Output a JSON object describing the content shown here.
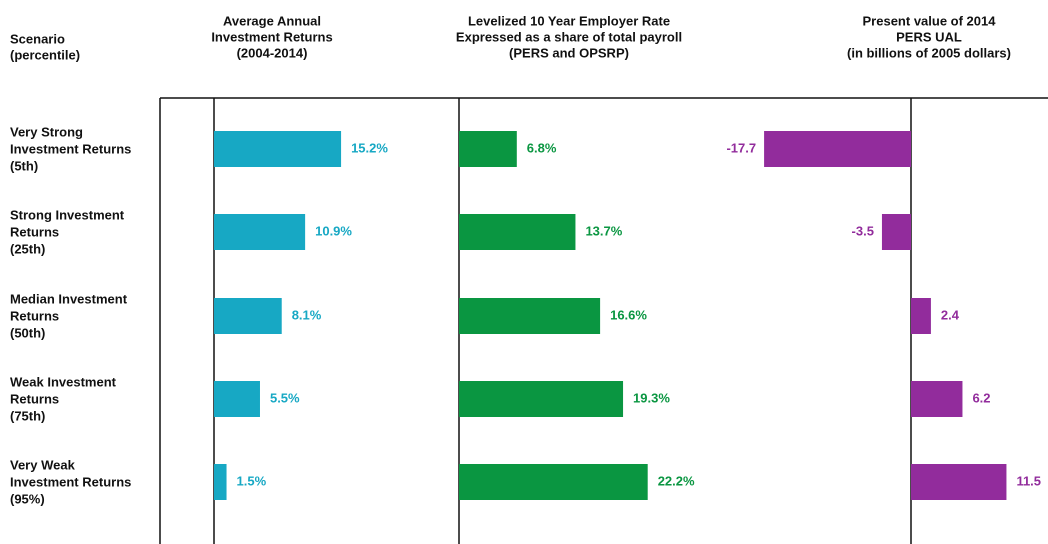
{
  "row_header": [
    "Scenario",
    "(percentile)"
  ],
  "chart_data": [
    {
      "type": "bar",
      "orientation": "horizontal",
      "title": [
        "Average Annual",
        "Investment Returns",
        "(2004-2014)"
      ],
      "categories": [
        [
          "Very Strong",
          "Investment Returns",
          "(5th)"
        ],
        [
          "Strong Investment",
          "Returns",
          "(25th)"
        ],
        [
          "Median Investment",
          "Returns",
          "(50th)"
        ],
        [
          "Weak Investment",
          "Returns",
          "(75th)"
        ],
        [
          "Very Weak",
          "Investment Returns",
          "(95%)"
        ]
      ],
      "values": [
        15.2,
        10.9,
        8.1,
        5.5,
        1.5
      ],
      "value_labels": [
        "15.2%",
        "10.9%",
        "8.1%",
        "5.5%",
        "1.5%"
      ],
      "color": "#17a8c4"
    },
    {
      "type": "bar",
      "orientation": "horizontal",
      "title": [
        "Levelized 10 Year Employer Rate",
        "Expressed as a share of total payroll",
        "(PERS and OPSRP)"
      ],
      "values": [
        6.8,
        13.7,
        16.6,
        19.3,
        22.2
      ],
      "value_labels": [
        "6.8%",
        "13.7%",
        "16.6%",
        "19.3%",
        "22.2%"
      ],
      "color": "#0a9641"
    },
    {
      "type": "bar",
      "orientation": "horizontal",
      "title": [
        "Present value of 2014",
        "PERS UAL",
        "(in billions of 2005 dollars)"
      ],
      "values": [
        -17.7,
        -3.5,
        2.4,
        6.2,
        11.5
      ],
      "color": "#922c9c"
    }
  ]
}
